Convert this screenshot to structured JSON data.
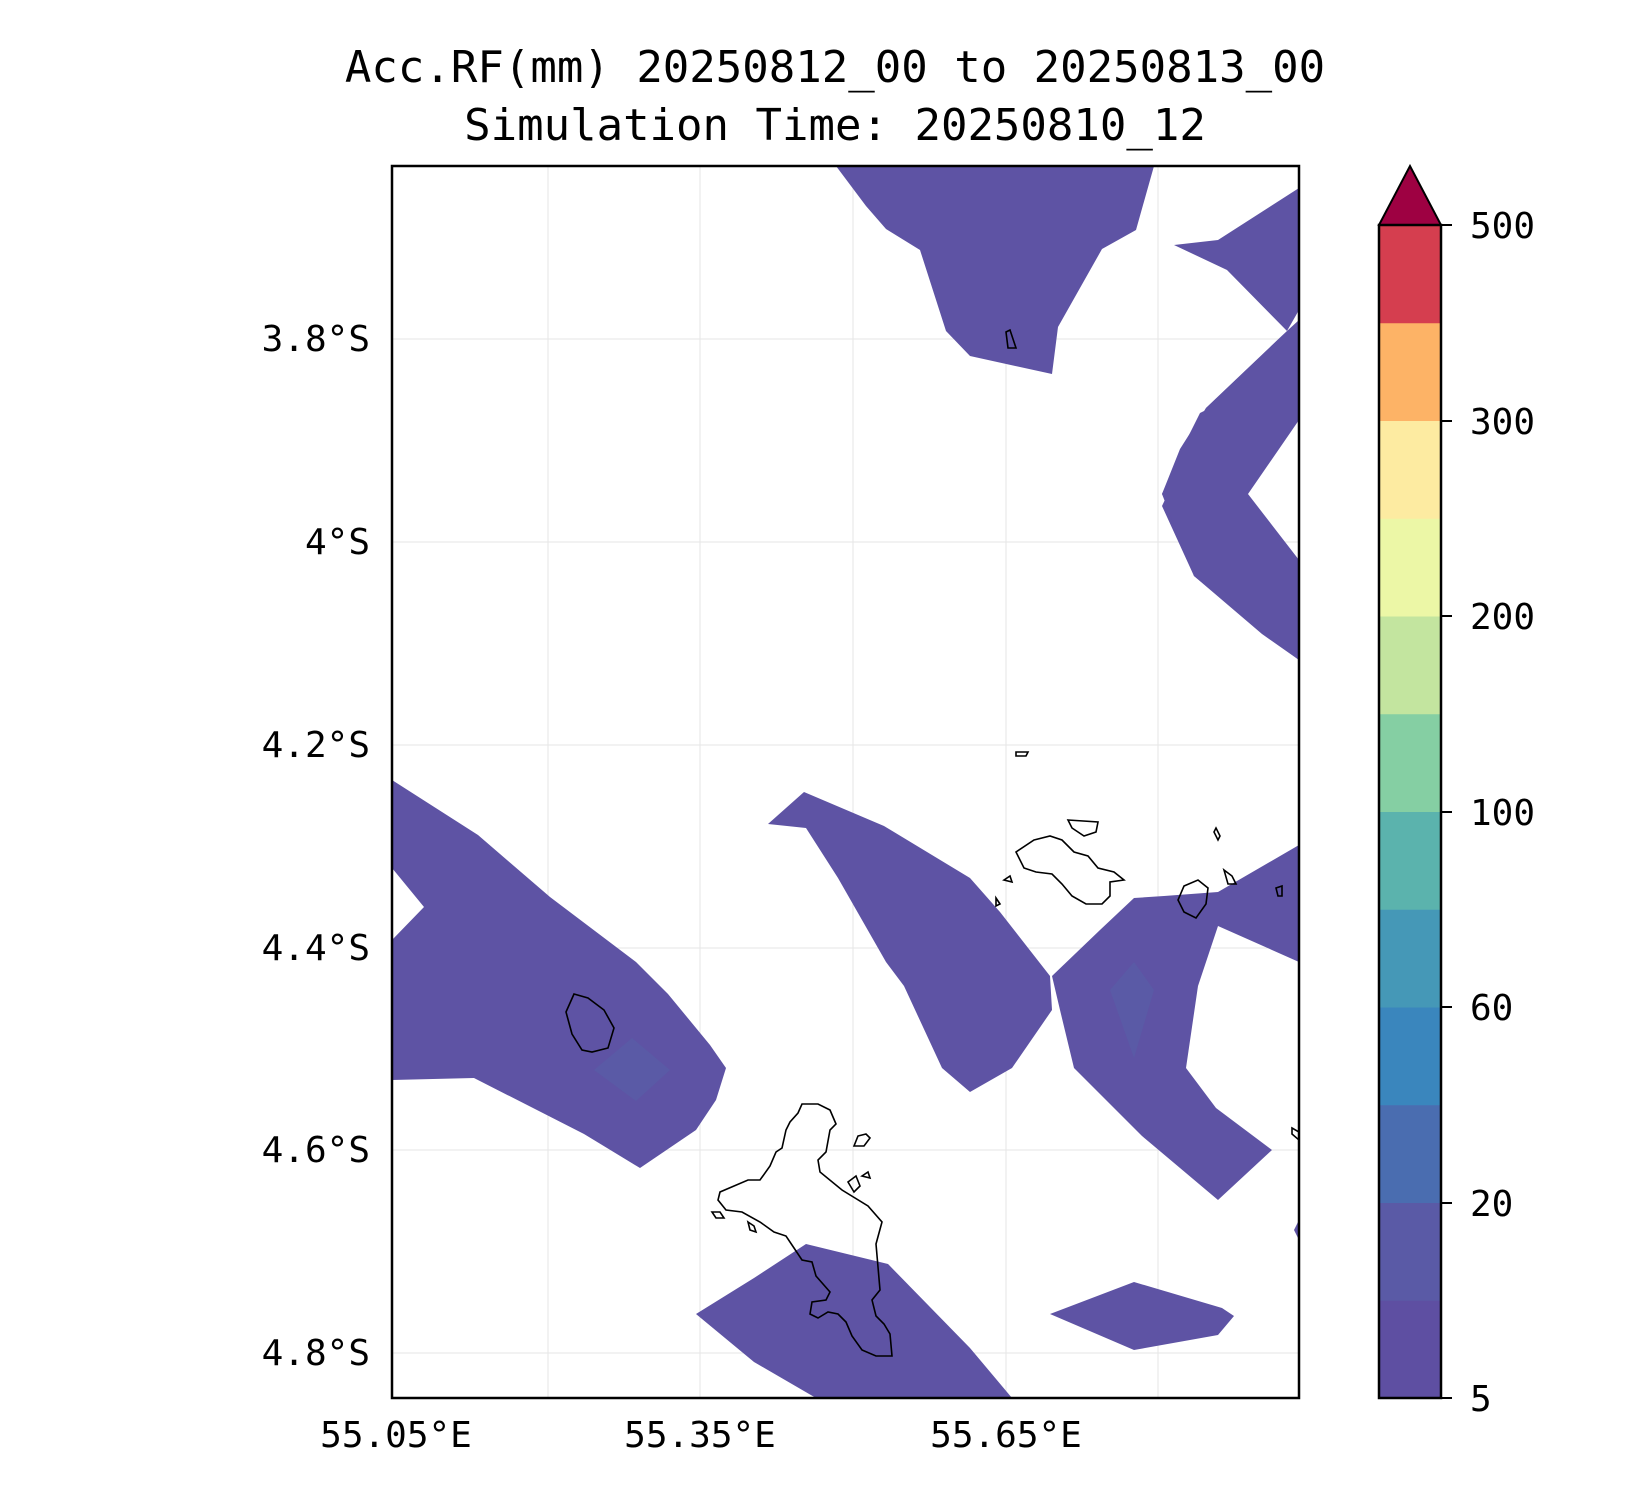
{
  "title": {
    "line1": "Acc.RF(mm) 20250812_00 to 20250813_00",
    "line2": "Simulation Time: 20250810_12"
  },
  "axes": {
    "x_ticks": [
      "55.05°E",
      "55.35°E",
      "55.65°E"
    ],
    "y_ticks": [
      "3.8°S",
      "4°S",
      "4.2°S",
      "4.4°S",
      "4.6°S",
      "4.8°S"
    ]
  },
  "colorbar": {
    "ticks": [
      "500",
      "300",
      "200",
      "100",
      "60",
      "20",
      "5"
    ],
    "colors": [
      "#5e4fa2",
      "#5a5aa6",
      "#4a6db0",
      "#3a86bd",
      "#4598b7",
      "#5bb3ad",
      "#85cfa3",
      "#c3e59f",
      "#ecf7a6",
      "#fdeba1",
      "#fdb366",
      "#d53e4f",
      "#9e0142"
    ],
    "extend": "max"
  },
  "map": {
    "rain_fill_color": "#5e53a4",
    "coastline_color": "#000000",
    "gridlines": true
  }
}
